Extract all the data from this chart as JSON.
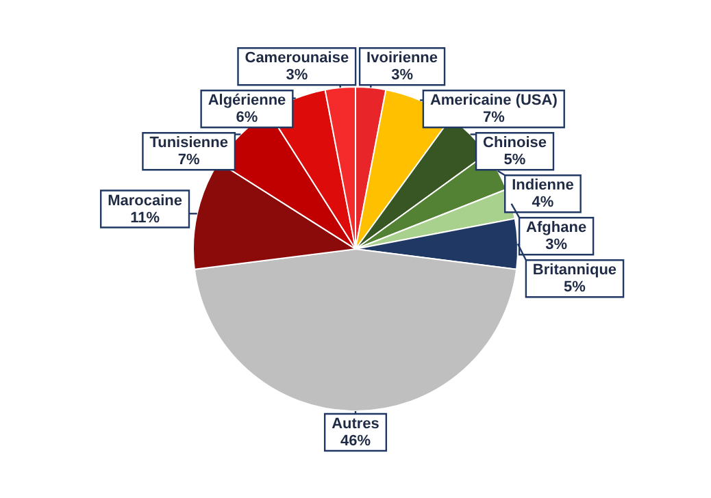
{
  "chart_data": {
    "type": "pie",
    "categories": [
      "Ivoirienne",
      "Americaine (USA)",
      "Chinoise",
      "Indienne",
      "Afghane",
      "Britannique",
      "Autres",
      "Marocaine",
      "Tunisienne",
      "Algérienne",
      "Camerounaise"
    ],
    "values": [
      3,
      7,
      5,
      4,
      3,
      5,
      46,
      11,
      7,
      6,
      3
    ],
    "value_labels": [
      "3%",
      "7%",
      "5%",
      "4%",
      "3%",
      "5%",
      "46%",
      "11%",
      "7%",
      "6%",
      "3%"
    ],
    "colors": [
      "#e8262a",
      "#ffc000",
      "#375623",
      "#548235",
      "#a9d18e",
      "#1f3864",
      "#bfbfbf",
      "#8b0a0a",
      "#c00000",
      "#de0b0b",
      "#f52a2a"
    ],
    "legend": false
  }
}
